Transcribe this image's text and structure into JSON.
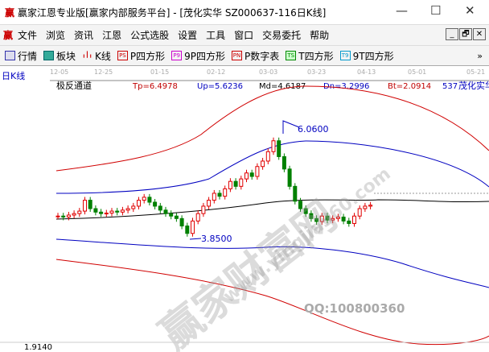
{
  "window": {
    "title": "赢家江恩专业版[赢家内部服务平台] - [茂化实华  SZ000637-116日K线]",
    "logo": "赢",
    "min": "—",
    "max": "☐",
    "close": "✕"
  },
  "menu": {
    "logo": "赢",
    "items": [
      "文件",
      "浏览",
      "资讯",
      "江恩",
      "公式选股",
      "设置",
      "工具",
      "窗口",
      "交易委托",
      "帮助"
    ],
    "mdi": [
      "_",
      "🗗",
      "✕"
    ]
  },
  "toolbar": {
    "items": [
      {
        "label": "行情",
        "icon": "table-icon"
      },
      {
        "label": "板块",
        "icon": "blocks-icon"
      },
      {
        "label": "K线",
        "icon": "candles-icon"
      },
      {
        "label": "P四方形",
        "icon": "PS",
        "color": "#c00000"
      },
      {
        "label": "9P四方形",
        "icon": "P9",
        "color": "#c000c0"
      },
      {
        "label": "P数字表",
        "icon": "PN",
        "color": "#c00000"
      },
      {
        "label": "T四方形",
        "icon": "TS",
        "color": "#008000"
      },
      {
        "label": "9T四方形",
        "icon": "T9",
        "color": "#0090c0"
      }
    ],
    "more": "»"
  },
  "chart_header": {
    "period": "日K线",
    "indicator": "极反通道",
    "tp": "Tp=6.4978",
    "up": "Up=5.6236",
    "md": "Md=4.6187",
    "dn": "Dn=3.2996",
    "bt": "Bt=2.0914",
    "code": "537",
    "name": "茂化实华"
  },
  "chart_data": {
    "type": "candlestick",
    "dates": [
      "12-05",
      "12-25",
      "01-15",
      "02-12",
      "03-03",
      "03-23",
      "04-13",
      "05-01",
      "05-21"
    ],
    "closes": [
      4.3,
      4.28,
      4.32,
      4.35,
      4.4,
      4.62,
      4.45,
      4.38,
      4.35,
      4.36,
      4.4,
      4.38,
      4.42,
      4.45,
      4.5,
      4.62,
      4.68,
      4.58,
      4.5,
      4.42,
      4.35,
      4.3,
      4.25,
      4.1,
      3.95,
      4.2,
      4.35,
      4.5,
      4.62,
      4.76,
      4.7,
      4.85,
      5.0,
      4.9,
      5.05,
      5.17,
      5.1,
      5.3,
      5.41,
      5.6,
      5.82,
      5.5,
      5.25,
      4.9,
      4.6,
      4.45,
      4.35,
      4.25,
      4.19,
      4.3,
      4.22,
      4.25,
      4.28,
      4.2,
      4.15,
      4.3,
      4.45,
      4.5,
      4.52
    ],
    "high_label": "6.0600",
    "low_label": "3.8500",
    "axis_low": "1.9140",
    "watermark": "赢家财富网",
    "watermark2": "www.yingjia360.com",
    "qq": "QQ:100800360",
    "colors": {
      "up": "#e00000",
      "down": "#008000",
      "upper": "#d00000",
      "mid": "#000000",
      "inner": "#0000c0"
    }
  }
}
